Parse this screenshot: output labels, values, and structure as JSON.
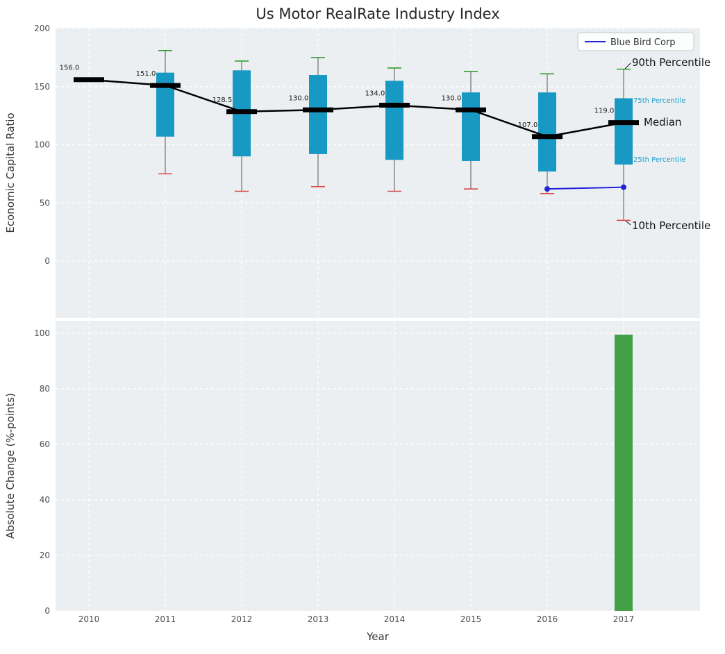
{
  "title": "Us Motor RealRate Industry Index",
  "axes": {
    "top_ylabel": "Economic Capital Ratio",
    "bottom_ylabel": "Absolute Change (%-points)",
    "xlabel": "Year"
  },
  "legend": {
    "label": "Blue Bird Corp"
  },
  "annotations": {
    "p90": "90th Percentile",
    "p75": "75th Percentile",
    "median": "Median",
    "p25": "25th Percentile",
    "p10": "10th Percentile"
  },
  "colors": {
    "plot_bg": "#eceff1",
    "grid": "#ffffff",
    "box": "#1899c4",
    "p90_cap": "#2e9e2e",
    "p10_cap": "#dc4444",
    "whisker": "#555555",
    "median": "#000000",
    "corp_line": "#2020dd",
    "bar": "#43a047",
    "annotation_teal": "#1b9ec9",
    "tick_label": "#4d4d4d",
    "axis_label": "#333333"
  },
  "chart_data": [
    {
      "type": "boxplot",
      "title": "Us Motor RealRate Industry Index",
      "xlabel": "Year",
      "ylabel": "Economic Capital Ratio",
      "ylim": [
        -50,
        202
      ],
      "yticks": [
        0,
        50,
        100,
        150,
        200
      ],
      "categories": [
        "2010",
        "2011",
        "2012",
        "2013",
        "2014",
        "2015",
        "2016",
        "2017"
      ],
      "series": [
        {
          "name": "Median",
          "values": [
            156.0,
            151.0,
            128.5,
            130.0,
            134.0,
            130.0,
            107.0,
            119.0
          ]
        },
        {
          "name": "90th Percentile",
          "values": [
            null,
            181,
            172,
            175,
            166,
            163,
            161,
            165
          ]
        },
        {
          "name": "75th Percentile",
          "values": [
            null,
            162,
            164,
            160,
            155,
            145,
            145,
            140
          ]
        },
        {
          "name": "25th Percentile",
          "values": [
            null,
            107,
            90,
            92,
            87,
            86,
            77,
            83
          ]
        },
        {
          "name": "10th Percentile",
          "values": [
            null,
            75,
            60,
            64,
            60,
            62,
            58,
            35
          ]
        },
        {
          "name": "Blue Bird Corp",
          "values": [
            null,
            null,
            null,
            null,
            null,
            null,
            62,
            63.5
          ]
        }
      ],
      "median_labels": [
        "156.0",
        "151.0",
        "128.5",
        "130.0",
        "134.0",
        "130.0",
        "107.0",
        "119.0"
      ],
      "legend": [
        "Blue Bird Corp"
      ],
      "legend_position": "upper right",
      "grid": true
    },
    {
      "type": "bar",
      "xlabel": "Year",
      "ylabel": "Absolute Change (%-points)",
      "ylim": [
        0,
        105
      ],
      "yticks": [
        0,
        20,
        40,
        60,
        80,
        100
      ],
      "categories": [
        "2010",
        "2011",
        "2012",
        "2013",
        "2014",
        "2015",
        "2016",
        "2017"
      ],
      "values": [
        null,
        null,
        null,
        null,
        null,
        null,
        null,
        99.5
      ],
      "grid": true
    }
  ]
}
